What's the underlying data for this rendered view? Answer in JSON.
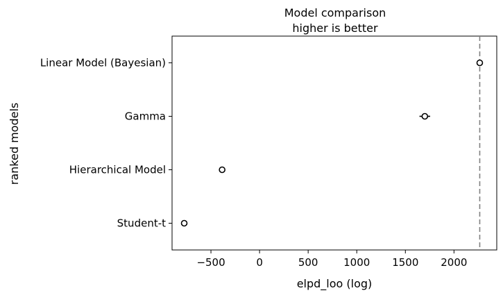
{
  "chart_data": {
    "type": "scatter",
    "title_lines": [
      "Model comparison",
      "higher is better"
    ],
    "xlabel": "elpd_loo (log)",
    "ylabel": "ranked models",
    "xlim": [
      -900,
      2440
    ],
    "xticks": [
      -500,
      0,
      500,
      1000,
      1500,
      2000
    ],
    "xtick_labels": [
      "−500",
      "0",
      "500",
      "1000",
      "1500",
      "2000"
    ],
    "reference_line": 2265,
    "grid": false,
    "models": [
      {
        "name": "Linear Model (Bayesian)",
        "elpd": 2265,
        "se": 20
      },
      {
        "name": "Gamma",
        "elpd": 1700,
        "se": 55
      },
      {
        "name": "Hierarchical Model",
        "elpd": -385,
        "se": 25
      },
      {
        "name": "Student-t",
        "elpd": -775,
        "se": 20
      }
    ]
  }
}
